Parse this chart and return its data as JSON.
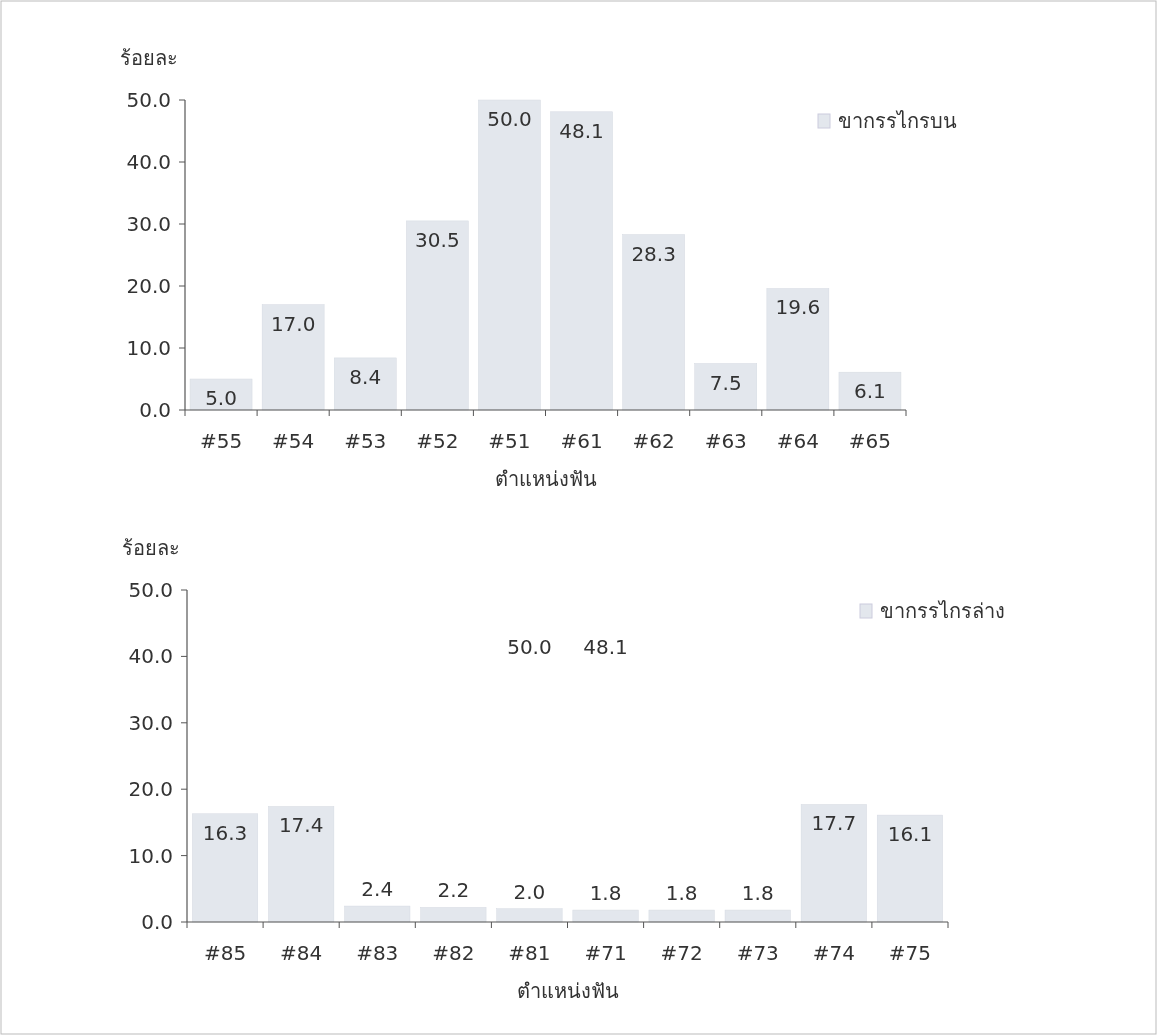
{
  "chart_data": [
    {
      "type": "bar",
      "ylabel": "ร้อยละ",
      "xlabel": "ตำแหน่งฟัน",
      "categories": [
        "#55",
        "#54",
        "#53",
        "#52",
        "#51",
        "#61",
        "#62",
        "#63",
        "#64",
        "#65"
      ],
      "series": [
        {
          "name": "ขากรรไกรบน",
          "color": "#e3e7ed",
          "values": [
            5.0,
            17.0,
            8.4,
            30.5,
            50.0,
            48.1,
            28.3,
            7.5,
            19.6,
            6.1
          ],
          "value_labels": [
            "5.0",
            "17.0",
            "8.4",
            "30.5",
            "50.0",
            "48.1",
            "28.3",
            "7.5",
            "19.6",
            "6.1"
          ]
        }
      ],
      "ylim": [
        0,
        50
      ],
      "yticks": [
        {
          "value": 0,
          "label": "0.0"
        },
        {
          "value": 10,
          "label": "10.0"
        },
        {
          "value": 20,
          "label": "20.0"
        },
        {
          "value": 30,
          "label": "30.0"
        },
        {
          "value": 40,
          "label": "40.0"
        },
        {
          "value": 50,
          "label": "50.0"
        }
      ],
      "legend": "top right",
      "grid": false
    },
    {
      "type": "bar",
      "ylabel": "ร้อยละ",
      "xlabel": "ตำแหน่งฟัน",
      "categories": [
        "#85",
        "#84",
        "#83",
        "#82",
        "#81",
        "#71",
        "#72",
        "#73",
        "#74",
        "#75"
      ],
      "series": [
        {
          "name": "ขากรรไกรล่าง",
          "color": "#e3e7ed",
          "values": [
            16.3,
            17.4,
            2.4,
            2.2,
            2.0,
            1.8,
            1.8,
            1.8,
            17.7,
            16.1
          ],
          "value_labels": [
            "16.3",
            "17.4",
            "2.4",
            "2.2",
            "2.0",
            "1.8",
            "1.8",
            "1.8",
            "17.7",
            "16.1"
          ]
        }
      ],
      "ylim": [
        0,
        50
      ],
      "yticks": [
        {
          "value": 0,
          "label": "0.0"
        },
        {
          "value": 10,
          "label": "10.0"
        },
        {
          "value": 20,
          "label": "20.0"
        },
        {
          "value": 30,
          "label": "30.0"
        },
        {
          "value": 40,
          "label": "40.0"
        },
        {
          "value": 50,
          "label": "50.0"
        }
      ],
      "annotations": [
        "50.0",
        "48.1"
      ],
      "legend": "top right",
      "grid": false
    }
  ]
}
